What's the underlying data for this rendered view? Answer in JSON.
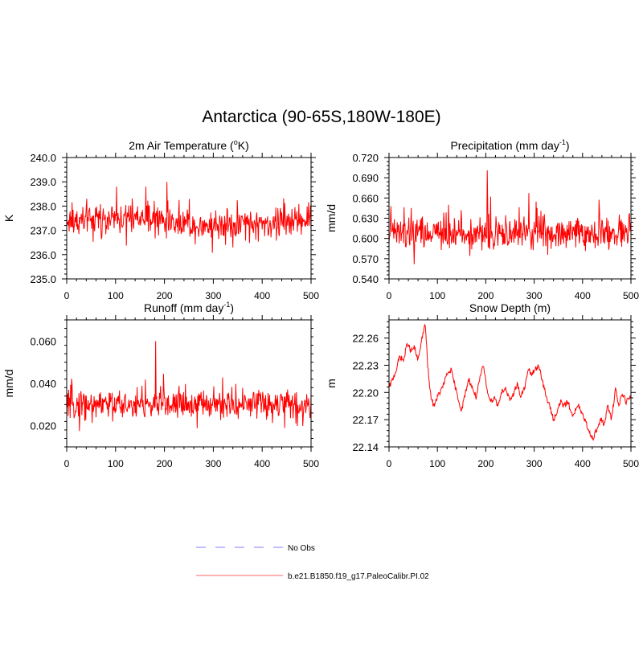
{
  "title": "Antarctica (90-65S,180W-180E)",
  "colors": {
    "series": "#ff0000",
    "legend_obs": "#aaaaff",
    "legend_model": "#ff9999",
    "axis": "#000000"
  },
  "legend": [
    {
      "label": "No Obs",
      "style": "dashed"
    },
    {
      "label": "b.e21.B1850.f19_g17.PaleoCalibr.PI.02",
      "style": "solid"
    }
  ],
  "chart_data": [
    {
      "type": "line",
      "title": "2m Air Temperature",
      "title_unit_pre": " (",
      "title_unit_sup": "o",
      "title_unit_post": "K)",
      "ylabel": "K",
      "xlim": [
        0,
        500
      ],
      "ylim": [
        235.0,
        240.0
      ],
      "xticks": [
        0,
        100,
        200,
        300,
        400,
        500
      ],
      "yticks": [
        "235.0",
        "236.0",
        "237.0",
        "238.0",
        "239.0",
        "240.0"
      ],
      "series": [
        {
          "name": "b.e21.B1850.f19_g17.PaleoCalibr.PI.02",
          "mean": 237.35,
          "amplitude": 0.95,
          "peak_x": 205,
          "peak_y": 239.0,
          "min_y": 235.9
        }
      ]
    },
    {
      "type": "line",
      "title": "Precipitation (mm day",
      "title_unit_pre": "",
      "title_unit_sup": "-1",
      "title_unit_post": ")",
      "ylabel": "mm/d",
      "xlim": [
        0,
        500
      ],
      "ylim": [
        0.54,
        0.72
      ],
      "xticks": [
        0,
        100,
        200,
        300,
        400,
        500
      ],
      "yticks": [
        "0.540",
        "0.570",
        "0.600",
        "0.630",
        "0.660",
        "0.690",
        "0.720"
      ],
      "series": [
        {
          "name": "b.e21.B1850.f19_g17.PaleoCalibr.PI.02",
          "mean": 0.607,
          "amplitude": 0.035,
          "peak_x": 203,
          "peak_y": 0.701,
          "min_y": 0.548
        }
      ]
    },
    {
      "type": "line",
      "title": "Runoff (mm day",
      "title_unit_pre": "",
      "title_unit_sup": "-1",
      "title_unit_post": ")",
      "ylabel": "mm/d",
      "xlim": [
        0,
        500
      ],
      "ylim": [
        0.01,
        0.07
      ],
      "xticks": [
        0,
        100,
        200,
        300,
        400,
        500
      ],
      "yticks": [
        "0.020",
        "0.040",
        "0.060"
      ],
      "series": [
        {
          "name": "b.e21.B1850.f19_g17.PaleoCalibr.PI.02",
          "mean": 0.03,
          "amplitude": 0.01,
          "peak_x": 182,
          "peak_y": 0.06,
          "min_y": 0.016
        }
      ]
    },
    {
      "type": "line",
      "title": "Snow Depth (m)",
      "title_unit_pre": "",
      "title_unit_sup": "",
      "title_unit_post": "",
      "ylabel": "m",
      "xlim": [
        0,
        500
      ],
      "ylim": [
        22.14,
        22.28
      ],
      "xticks": [
        0,
        100,
        200,
        300,
        400,
        500
      ],
      "yticks": [
        "22.14",
        "22.17",
        "22.20",
        "22.23",
        "22.26"
      ],
      "series": [
        {
          "name": "b.e21.B1850.f19_g17.PaleoCalibr.PI.02",
          "x": [
            0,
            8,
            15,
            22,
            30,
            38,
            45,
            52,
            60,
            68,
            75,
            80,
            85,
            92,
            100,
            110,
            120,
            128,
            135,
            142,
            150,
            158,
            165,
            172,
            180,
            188,
            195,
            202,
            210,
            218,
            225,
            232,
            240,
            250,
            258,
            265,
            272,
            280,
            288,
            295,
            302,
            310,
            318,
            325,
            332,
            340,
            348,
            355,
            362,
            370,
            378,
            385,
            392,
            400,
            408,
            415,
            422,
            430,
            438,
            445,
            452,
            460,
            468,
            475,
            482,
            490,
            500
          ],
          "y": [
            22.205,
            22.215,
            22.225,
            22.24,
            22.235,
            22.255,
            22.245,
            22.25,
            22.235,
            22.26,
            22.275,
            22.23,
            22.2,
            22.185,
            22.195,
            22.205,
            22.22,
            22.225,
            22.21,
            22.195,
            22.18,
            22.2,
            22.215,
            22.205,
            22.195,
            22.215,
            22.23,
            22.205,
            22.19,
            22.195,
            22.185,
            22.2,
            22.205,
            22.19,
            22.2,
            22.21,
            22.195,
            22.205,
            22.225,
            22.22,
            22.225,
            22.23,
            22.21,
            22.195,
            22.185,
            22.17,
            22.18,
            22.19,
            22.185,
            22.19,
            22.175,
            22.18,
            22.185,
            22.175,
            22.165,
            22.155,
            22.15,
            22.16,
            22.17,
            22.165,
            22.185,
            22.17,
            22.205,
            22.185,
            22.2,
            22.19,
            22.195
          ],
          "noise": 0.003
        }
      ]
    }
  ]
}
